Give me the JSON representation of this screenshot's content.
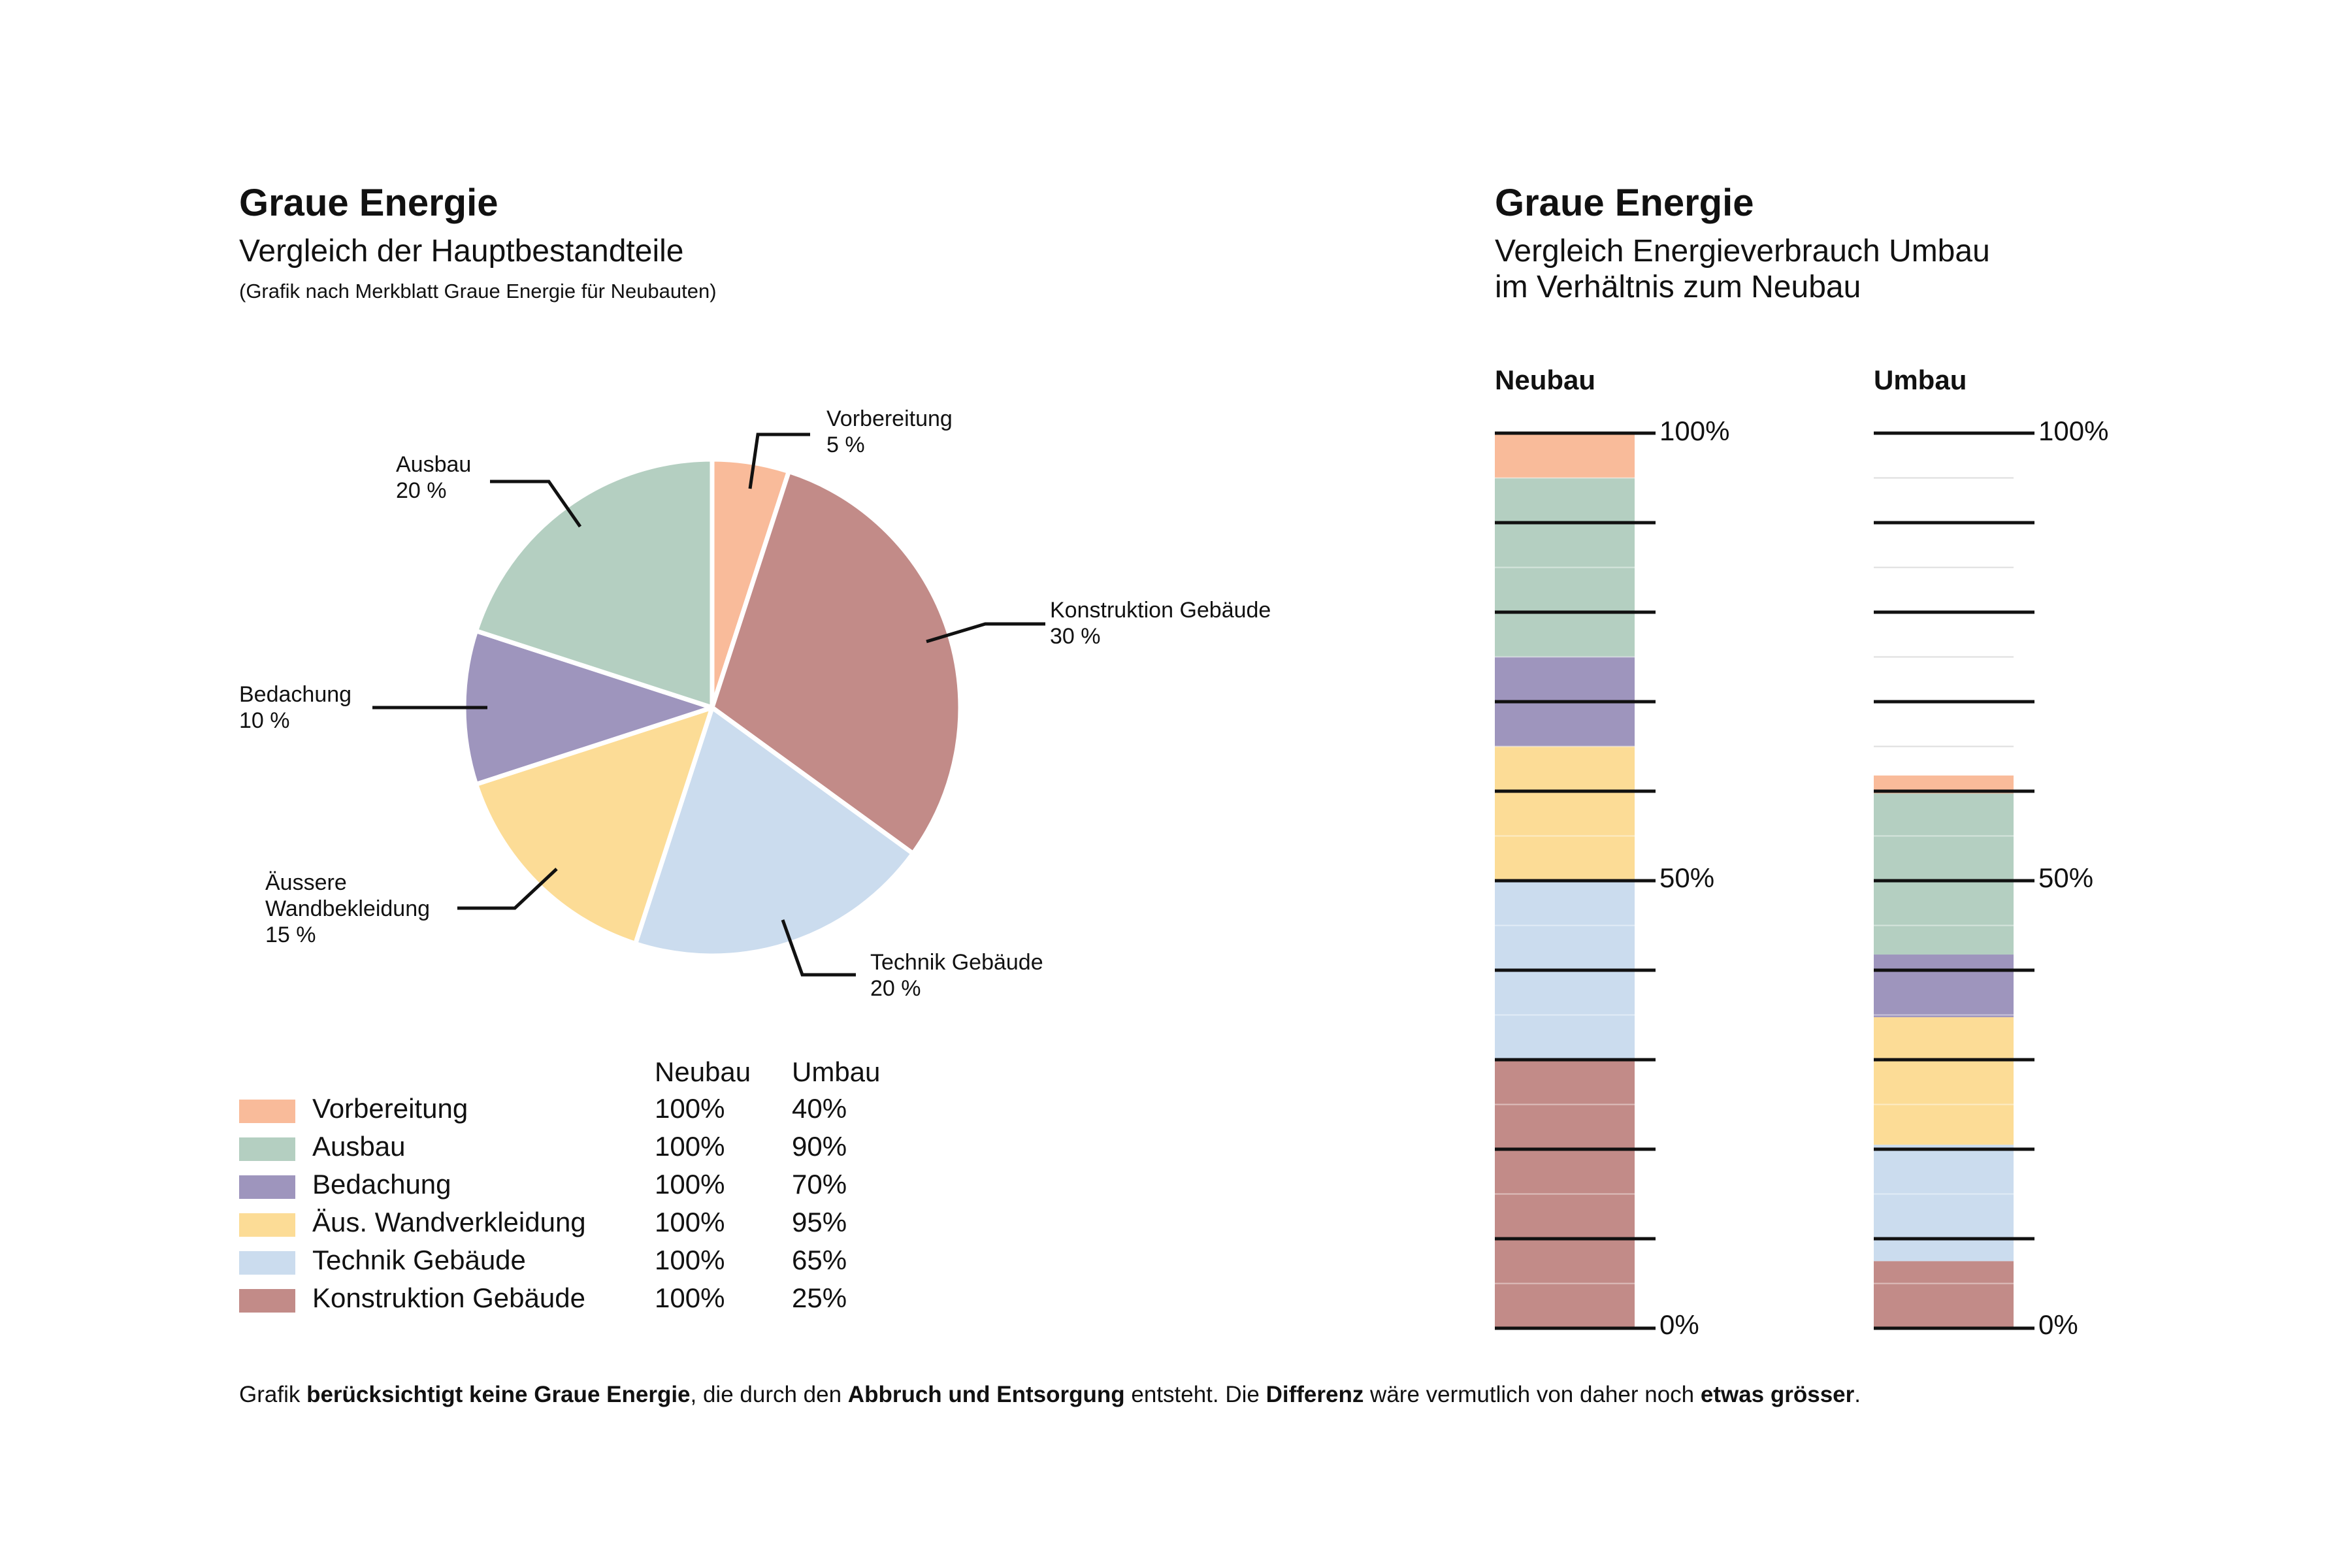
{
  "left": {
    "title": "Graue Energie",
    "subtitle": "Vergleich der Hauptbestandteile",
    "source": "(Grafik nach Merkblatt Graue Energie für Neubauten)"
  },
  "right": {
    "title": "Graue Energie",
    "subtitle_line1": "Vergleich Energieverbrauch Umbau",
    "subtitle_line2": "im Verhältnis zum Neubau"
  },
  "table": {
    "header_neubau": "Neubau",
    "header_umbau": "Umbau",
    "rows": [
      {
        "label": "Vorbereitung",
        "neubau": "100%",
        "umbau": "40%"
      },
      {
        "label": "Ausbau",
        "neubau": "100%",
        "umbau": "90%"
      },
      {
        "label": "Bedachung",
        "neubau": "100%",
        "umbau": "70%"
      },
      {
        "label": "Äus. Wandverkleidung",
        "neubau": "100%",
        "umbau": "95%"
      },
      {
        "label": "Technik Gebäude",
        "neubau": "100%",
        "umbau": "65%"
      },
      {
        "label": "Konstruktion Gebäude",
        "neubau": "100%",
        "umbau": "25%"
      }
    ]
  },
  "colors": {
    "vorbereitung": "#f9bb9a",
    "ausbau": "#b4cfc1",
    "bedachung": "#9e95bd",
    "wand": "#fcdc96",
    "technik": "#cbdcee",
    "konstruktion": "#c28b88"
  },
  "chart_data": [
    {
      "type": "pie",
      "title": "Graue Energie",
      "subtitle": "Vergleich der Hauptbestandteile",
      "slices": [
        {
          "key": "vorbereitung",
          "name": "Vorbereitung",
          "value": 5,
          "label": "5 %"
        },
        {
          "key": "konstruktion",
          "name": "Konstruktion Gebäude",
          "value": 30,
          "label": "30 %"
        },
        {
          "key": "technik",
          "name": "Technik Gebäude",
          "value": 20,
          "label": "20 %"
        },
        {
          "key": "wand",
          "name": "Äussere Wandbekleidung",
          "name_line1": "Äussere",
          "name_line2": "Wandbekleidung",
          "value": 15,
          "label": "15 %"
        },
        {
          "key": "bedachung",
          "name": "Bedachung",
          "value": 10,
          "label": "10 %"
        },
        {
          "key": "ausbau",
          "name": "Ausbau",
          "value": 20,
          "label": "20 %"
        }
      ]
    },
    {
      "type": "bar",
      "stacked": true,
      "title": "Graue Energie",
      "subtitle": "Vergleich Energieverbrauch Umbau im Verhältnis zum Neubau",
      "categories": [
        "Neubau",
        "Umbau"
      ],
      "ylim": [
        0,
        100
      ],
      "tick_labels": [
        "100%",
        "50%",
        "0%"
      ],
      "stack_order_bottom_to_top": [
        "konstruktion",
        "technik",
        "wand",
        "bedachung",
        "ausbau",
        "vorbereitung"
      ],
      "series": [
        {
          "key": "konstruktion",
          "name": "Konstruktion Gebäude",
          "values": [
            30,
            7.5
          ]
        },
        {
          "key": "technik",
          "name": "Technik Gebäude",
          "values": [
            20,
            13
          ]
        },
        {
          "key": "wand",
          "name": "Äus. Wandverkleidung",
          "values": [
            15,
            14.25
          ]
        },
        {
          "key": "bedachung",
          "name": "Bedachung",
          "values": [
            10,
            7
          ]
        },
        {
          "key": "ausbau",
          "name": "Ausbau",
          "values": [
            20,
            18
          ]
        },
        {
          "key": "vorbereitung",
          "name": "Vorbereitung",
          "values": [
            5,
            2
          ]
        }
      ],
      "totals": [
        100,
        61.75
      ]
    }
  ],
  "footnote": {
    "p1": "Grafik ",
    "b1": "berücksichtigt keine Graue Energie",
    "p2": ", die durch den ",
    "b2": "Abbruch und Entsorgung",
    "p3": " entsteht. Die ",
    "b3": "Differenz",
    "p4": " wäre vermutlich von daher noch ",
    "b4": "etwas grösser",
    "p5": "."
  }
}
